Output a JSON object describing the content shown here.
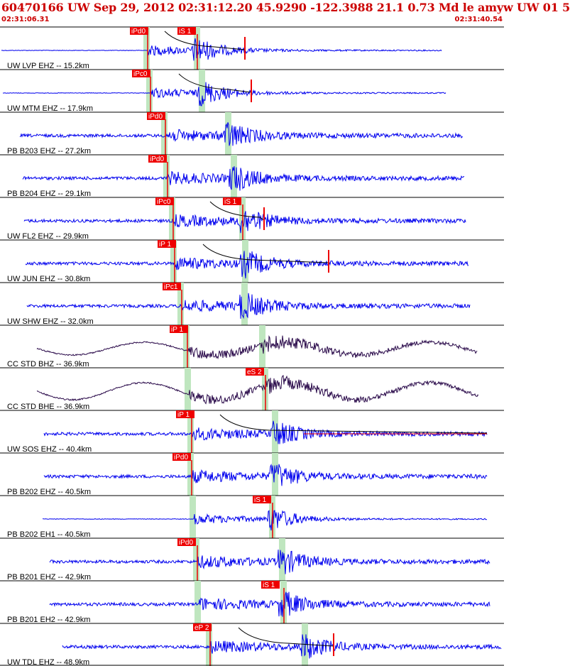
{
  "header": {
    "title": "60470166 UW Sep 29, 2012 02:31:12.20   45.9290 -122.3988 21.1 0.73 Md le amyw UW 01    5",
    "start_time": "02:31:06.31",
    "end_time": "02:31:40.54"
  },
  "colors": {
    "trace_blue": "#0000ee",
    "trace_dark": "#2a0a4a",
    "pick_red": "#ee0000",
    "shade_green": "#bfe6bf",
    "grid": "#000000"
  },
  "channels": [
    {
      "label": "UW LVP EHZ -- 15.2km",
      "color": "blue",
      "picks": [
        {
          "text": "iPd0"
        },
        {
          "text": "iS 1"
        }
      ]
    },
    {
      "label": "UW MTM EHZ -- 17.9km",
      "color": "blue",
      "picks": [
        {
          "text": "iPc0"
        }
      ]
    },
    {
      "label": "PB B203 EHZ -- 27.2km",
      "color": "blue",
      "picks": [
        {
          "text": "iPd0"
        }
      ]
    },
    {
      "label": "PB B204 EHZ -- 29.1km",
      "color": "blue",
      "picks": [
        {
          "text": "iPd0"
        }
      ]
    },
    {
      "label": "UW FL2 EHZ -- 29.9km",
      "color": "blue",
      "picks": [
        {
          "text": "iPc0"
        },
        {
          "text": "iS 1"
        }
      ]
    },
    {
      "label": "UW JUN EHZ -- 30.8km",
      "color": "blue",
      "picks": [
        {
          "text": "iP 1"
        }
      ]
    },
    {
      "label": "UW SHW EHZ -- 32.0km",
      "color": "blue",
      "picks": [
        {
          "text": "iPc1"
        }
      ]
    },
    {
      "label": "CC STD BHZ -- 36.9km",
      "color": "dark",
      "picks": [
        {
          "text": "iP 1"
        }
      ]
    },
    {
      "label": "CC STD BHE -- 36.9km",
      "color": "dark",
      "picks": [
        {
          "text": "eS 2"
        }
      ]
    },
    {
      "label": "UW SOS EHZ -- 40.4km",
      "color": "blue",
      "picks": [
        {
          "text": "iP 1"
        }
      ]
    },
    {
      "label": "PB B202 EHZ -- 40.5km",
      "color": "blue",
      "picks": [
        {
          "text": "iPd0"
        }
      ]
    },
    {
      "label": "PB B202 EH1 -- 40.5km",
      "color": "blue",
      "picks": [
        {
          "text": "iS 1"
        }
      ]
    },
    {
      "label": "PB B201 EHZ -- 42.9km",
      "color": "blue",
      "picks": [
        {
          "text": "iPd0"
        }
      ]
    },
    {
      "label": "PB B201 EH2 -- 42.9km",
      "color": "blue",
      "picks": [
        {
          "text": "iS 1"
        }
      ]
    },
    {
      "label": "UW TDL EHZ -- 48.9km",
      "color": "blue",
      "picks": [
        {
          "text": "eP 2"
        }
      ]
    }
  ]
}
